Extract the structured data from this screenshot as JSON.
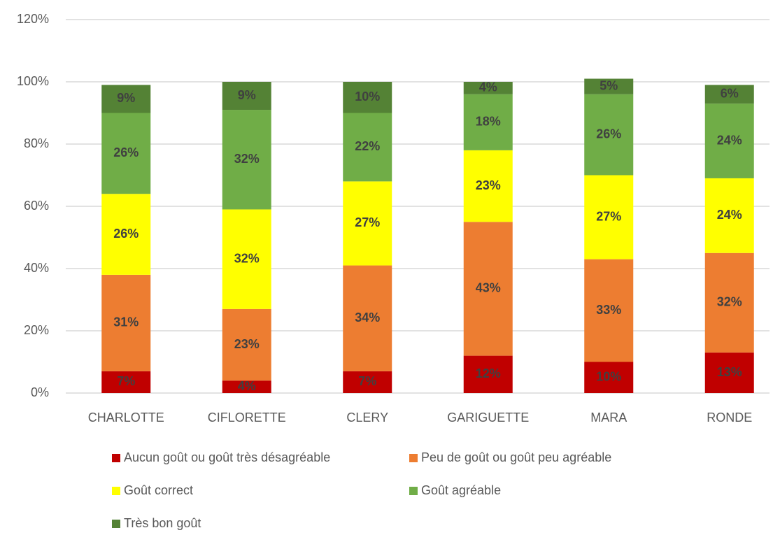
{
  "chart_data": {
    "type": "stacked_bar",
    "categories": [
      "CHARLOTTE",
      "CIFLORETTE",
      "CLERY",
      "GARIGUETTE",
      "MARA",
      "RONDE"
    ],
    "series": [
      {
        "name": "Aucun goût ou goût très désagréable",
        "color": "#c00000",
        "values": [
          7,
          4,
          7,
          12,
          10,
          13
        ],
        "value_labels": [
          "7%",
          "4%",
          "7%",
          "12%",
          "10%",
          "13%"
        ]
      },
      {
        "name": "Peu de goût ou goût peu agréable",
        "color": "#ed7d31",
        "values": [
          31,
          23,
          34,
          43,
          33,
          32
        ],
        "value_labels": [
          "31%",
          "23%",
          "34%",
          "43%",
          "33%",
          "32%"
        ]
      },
      {
        "name": "Goût correct",
        "color": "#ffff00",
        "values": [
          26,
          32,
          27,
          23,
          27,
          24
        ],
        "value_labels": [
          "26%",
          "32%",
          "27%",
          "23%",
          "27%",
          "24%"
        ]
      },
      {
        "name": "Goût agréable",
        "color": "#70ad47",
        "values": [
          26,
          32,
          22,
          18,
          26,
          24
        ],
        "value_labels": [
          "26%",
          "32%",
          "22%",
          "18%",
          "26%",
          "24%"
        ]
      },
      {
        "name": "Très bon goût",
        "color": "#548235",
        "values": [
          9,
          9,
          10,
          4,
          5,
          6
        ],
        "value_labels": [
          "9%",
          "9%",
          "10%",
          "4%",
          "5%",
          "6%"
        ]
      }
    ],
    "ylim": [
      0,
      120
    ],
    "yticks": [
      {
        "value": 0,
        "label": "0%"
      },
      {
        "value": 20,
        "label": "20%"
      },
      {
        "value": 40,
        "label": "40%"
      },
      {
        "value": 60,
        "label": "60%"
      },
      {
        "value": 80,
        "label": "80%"
      },
      {
        "value": 100,
        "label": "100%"
      },
      {
        "value": 120,
        "label": "120%"
      }
    ],
    "grid": true,
    "legend": "bottom"
  }
}
